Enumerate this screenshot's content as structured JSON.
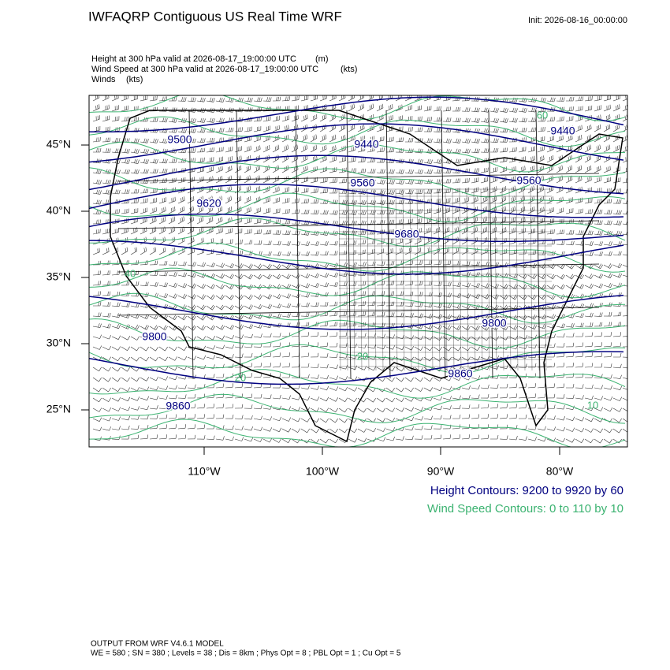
{
  "header": {
    "title": "IWFAQRP Contiguous US Real Time WRF",
    "init": "Init: 2026-08-16_00:00:00"
  },
  "fields": [
    {
      "label": "Height at 300 hPa valid at 2026-08-17_19:00:00 UTC",
      "units": "(m)"
    },
    {
      "label": "Wind Speed at 300 hPa valid at 2026-08-17_19:00:00 UTC",
      "units": "(kts)"
    },
    {
      "label": "Winds",
      "units": "(kts)"
    }
  ],
  "map": {
    "lat_labels": [
      "45°N",
      "40°N",
      "35°N",
      "30°N",
      "25°N"
    ],
    "lon_labels": [
      "110°W",
      "100°W",
      "90°W",
      "80°W"
    ],
    "height_contour_labels": [
      "9500",
      "9440",
      "9440",
      "9560",
      "9560",
      "9620",
      "9680",
      "9800",
      "9800",
      "9860",
      "9860"
    ],
    "wind_contour_labels": [
      "60",
      "20",
      "20",
      "10",
      "40"
    ]
  },
  "legend": {
    "height": "Height Contours: 9200 to 9920 by 60",
    "wind": "Wind Speed Contours: 0 to 110 by 10"
  },
  "footer": {
    "model": "OUTPUT FROM WRF V4.6.1 MODEL",
    "settings": "WE = 580 ; SN = 380 ; Levels = 38 ; Dis = 8km ; Phys Opt = 8 ; PBL Opt = 1 ; Cu Opt = 5"
  }
}
